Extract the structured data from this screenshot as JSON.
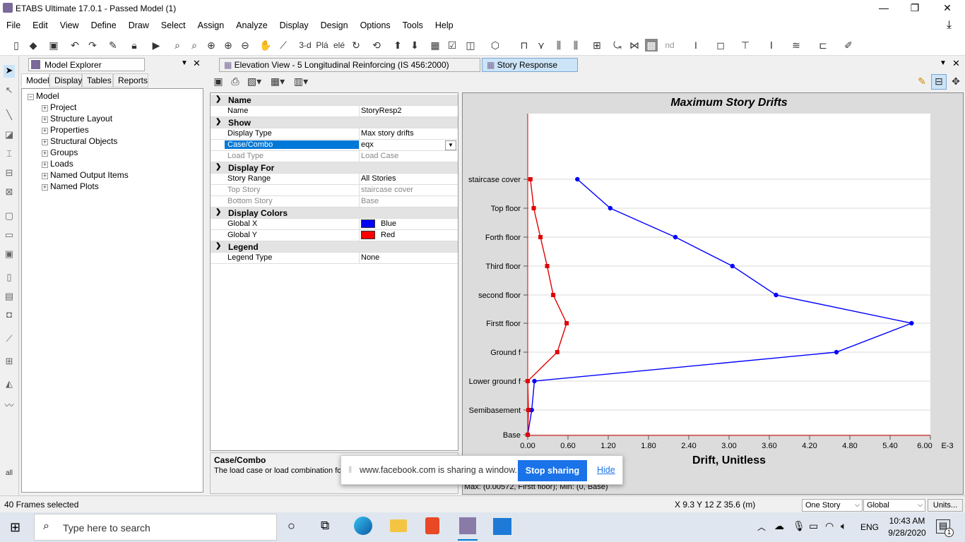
{
  "window": {
    "title": "ETABS Ultimate 17.0.1 - Passed Model (1)",
    "minimize": "—",
    "restore": "❐",
    "close": "✕"
  },
  "menu": [
    "File",
    "Edit",
    "View",
    "Define",
    "Draw",
    "Select",
    "Assign",
    "Analyze",
    "Display",
    "Design",
    "Options",
    "Tools",
    "Help"
  ],
  "toolbar": {
    "three_d": "3-d",
    "pln": "Plá",
    "elv": "elé",
    "nd": "nd"
  },
  "explorer": {
    "title": "Model Explorer",
    "tabs": [
      "Model",
      "Display",
      "Tables",
      "Reports"
    ],
    "root": "Model",
    "items": [
      "Project",
      "Structure Layout",
      "Properties",
      "Structural Objects",
      "Groups",
      "Loads",
      "Named Output Items",
      "Named Plots"
    ]
  },
  "view_tabs": {
    "elevation": "Elevation View - 5  Longitudinal Reinforcing  (IS 456:2000)",
    "story": "Story Response"
  },
  "props": {
    "cat_name": "Name",
    "name_k": "Name",
    "name_v": "StoryResp2",
    "cat_show": "Show",
    "disptype_k": "Display Type",
    "disptype_v": "Max story drifts",
    "case_k": "Case/Combo",
    "case_v": "eqx",
    "loadtype_k": "Load Type",
    "loadtype_v": "Load Case",
    "cat_dispfor": "Display For",
    "range_k": "Story Range",
    "range_v": "All Stories",
    "top_k": "Top Story",
    "top_v": "staircase cover",
    "bot_k": "Bottom Story",
    "bot_v": "Base",
    "cat_colors": "Display Colors",
    "gx_k": "Global X",
    "gx_v": "Blue",
    "gy_k": "Global Y",
    "gy_v": "Red",
    "cat_legend": "Legend",
    "legend_k": "Legend Type",
    "legend_v": "None"
  },
  "desc": {
    "title": "Case/Combo",
    "text": "The load case or load combination for"
  },
  "share": {
    "text": "www.facebook.com is sharing a window.",
    "stop": "Stop sharing",
    "hide": "Hide"
  },
  "chart_data": {
    "type": "line",
    "title": "Maximum Story Drifts",
    "xlabel": "Drift, Unitless",
    "x_unit_label": "E-3",
    "xlim": [
      0,
      6.0
    ],
    "xticks": [
      "0.00",
      "0.60",
      "1.20",
      "1.80",
      "2.40",
      "3.00",
      "3.60",
      "4.20",
      "4.80",
      "5.40",
      "6.00"
    ],
    "stories": [
      "Base",
      "Semibasement",
      "Lower ground f",
      "Ground f",
      "Firstt floor",
      "second floor",
      "Third floor",
      "Forth floor",
      "Top floor",
      "staircase cover"
    ],
    "series": [
      {
        "name": "Global X",
        "color": "#0000ff",
        "values": [
          0,
          0.06,
          0.1,
          4.6,
          5.72,
          3.7,
          3.05,
          2.2,
          1.23,
          0.74
        ]
      },
      {
        "name": "Global Y",
        "color": "#e00000",
        "values": [
          0,
          0.01,
          0.0,
          0.44,
          0.58,
          0.38,
          0.29,
          0.19,
          0.09,
          0.04
        ]
      }
    ],
    "maxmin": "Max: (0.00572, Firstt floor);   Min: (0, Base)"
  },
  "status": {
    "selected": "40 Frames selected",
    "coords": "X 9.3  Y 12  Z 35.6 (m)",
    "story_mode": "One Story",
    "coord_sys": "Global",
    "units": "Units..."
  },
  "taskbar": {
    "search": "Type here to search",
    "time": "10:43 AM",
    "date": "9/28/2020",
    "lang": "ENG",
    "notif": "1"
  },
  "lefttool_all": "all"
}
